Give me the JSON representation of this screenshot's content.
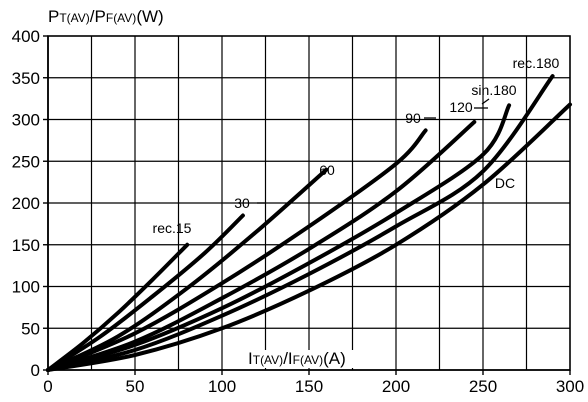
{
  "chart_data": {
    "type": "line",
    "ylabel": {
      "parts": [
        "P",
        "T(AV)",
        "/P",
        "F(AV)",
        "(W)"
      ]
    },
    "xlabel": {
      "parts": [
        "I",
        "T(AV)",
        "/I",
        "F(AV)",
        "(A)"
      ]
    },
    "xlim": [
      0,
      300
    ],
    "ylim": [
      0,
      400
    ],
    "xticks": [
      0,
      50,
      100,
      150,
      200,
      250,
      300
    ],
    "yticks": [
      0,
      50,
      100,
      150,
      200,
      250,
      300,
      350,
      400
    ],
    "x_tick_labels": [
      "0",
      "50",
      "100",
      "150",
      "200",
      "250",
      "300"
    ],
    "y_tick_labels": [
      "0",
      "50",
      "100",
      "150",
      "200",
      "250",
      "300",
      "350",
      "400"
    ],
    "grid": true,
    "grid_x_step": 25,
    "grid_y_step": 50,
    "series": [
      {
        "name": "rec.15",
        "x": [
          0,
          20,
          40,
          60,
          80
        ],
        "y": [
          0,
          32,
          68,
          108,
          150
        ]
      },
      {
        "name": "30",
        "x": [
          0,
          30,
          60,
          90,
          112
        ],
        "y": [
          0,
          40,
          88,
          140,
          185
        ]
      },
      {
        "name": "60",
        "x": [
          0,
          40,
          80,
          120,
          160
        ],
        "y": [
          0,
          40,
          98,
          166,
          240
        ]
      },
      {
        "name": "90",
        "x": [
          0,
          50,
          100,
          150,
          200,
          217
        ],
        "y": [
          0,
          44,
          104,
          172,
          247,
          287
        ]
      },
      {
        "name": "120",
        "x": [
          0,
          50,
          100,
          150,
          200,
          245
        ],
        "y": [
          0,
          34,
          86,
          145,
          214,
          297
        ]
      },
      {
        "name": "sin.180",
        "x": [
          0,
          50,
          100,
          150,
          200,
          250,
          265
        ],
        "y": [
          0,
          30,
          74,
          128,
          188,
          258,
          317
        ]
      },
      {
        "name": "rec.180",
        "x": [
          0,
          50,
          100,
          150,
          200,
          250,
          290
        ],
        "y": [
          0,
          24,
          65,
          115,
          172,
          238,
          352
        ]
      },
      {
        "name": "DC",
        "x": [
          0,
          50,
          100,
          150,
          200,
          250,
          300
        ],
        "y": [
          0,
          18,
          50,
          95,
          150,
          222,
          318
        ]
      }
    ]
  }
}
